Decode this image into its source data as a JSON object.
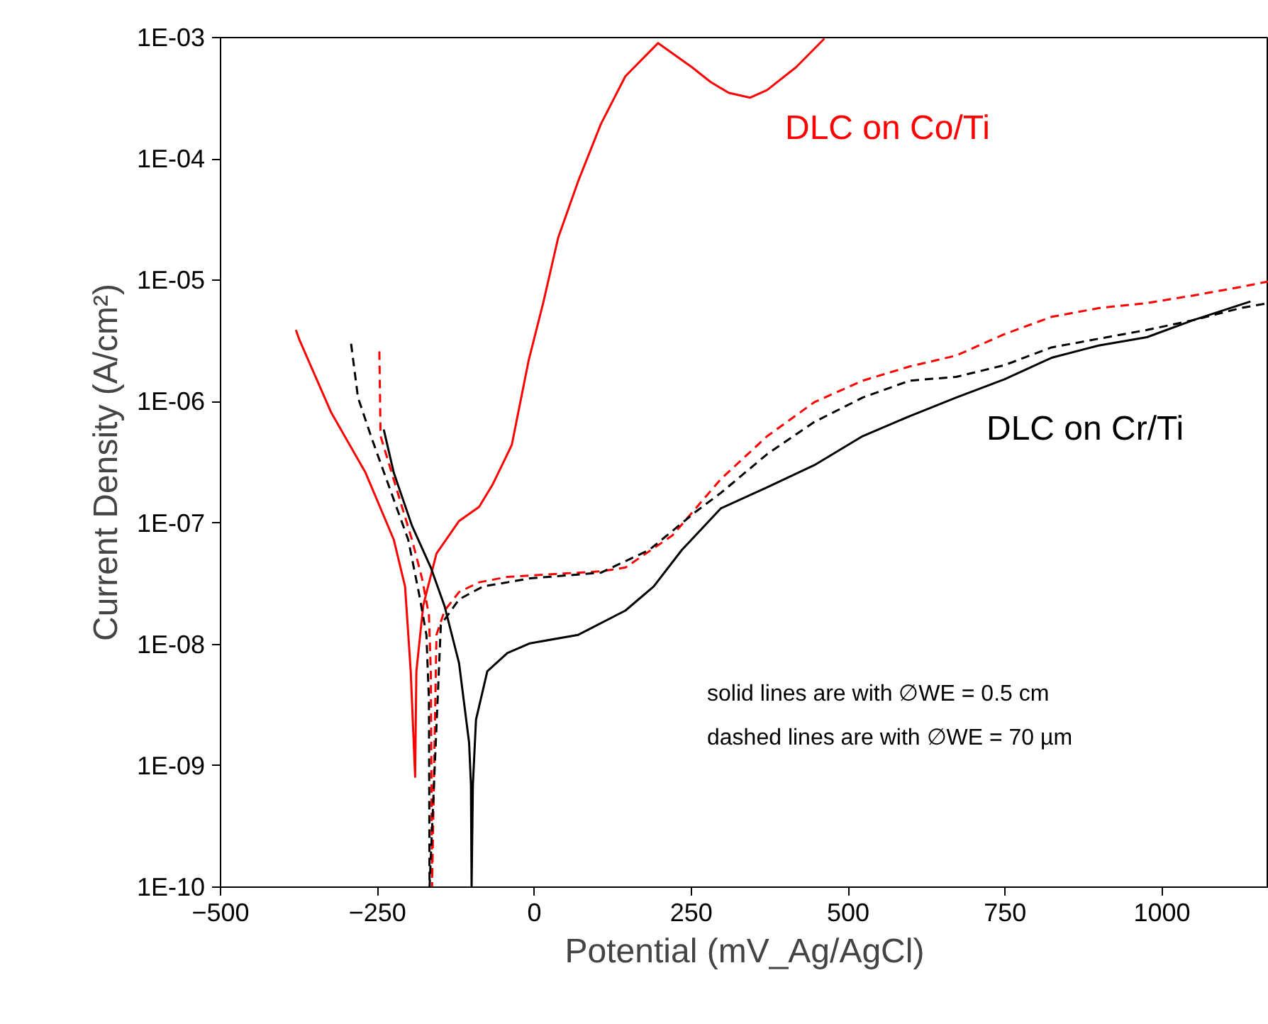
{
  "chart_data": {
    "type": "line",
    "xlabel": "Potential (mV_Ag/AgCl)",
    "ylabel": "Current Density (A/cm²)",
    "log": "y",
    "xlim": [
      -500,
      1170
    ],
    "xticks": [
      -500,
      -250,
      0,
      250,
      500,
      750,
      1000
    ],
    "ylim": [
      1e-10,
      0.001
    ],
    "yticks": [
      {
        "value": 1e-10,
        "label": "1E-10"
      },
      {
        "value": 1e-09,
        "label": "1E-09"
      },
      {
        "value": 1e-08,
        "label": "1E-08"
      },
      {
        "value": 1e-07,
        "label": "1E-07"
      },
      {
        "value": 1e-06,
        "label": "1E-06"
      },
      {
        "value": 1e-05,
        "label": "1E-05"
      },
      {
        "value": 0.0001,
        "label": "1E-04"
      },
      {
        "value": 0.001,
        "label": "1E-03"
      }
    ],
    "grid": false,
    "series": [
      {
        "name": "DLC on Co/Ti",
        "color": "#ff0000",
        "line_style": "solid",
        "x": [
          -380,
          -374,
          -324,
          -269,
          -224,
          -206,
          -197,
          -190,
          -188,
          -177,
          -156,
          -120,
          -88,
          -66,
          -43,
          -36,
          -9,
          14,
          38,
          70,
          106,
          145,
          197,
          251,
          281,
          310,
          344,
          371,
          417,
          462
        ],
        "values": [
          3.9e-06,
          3.2e-06,
          8.2e-07,
          2.6e-07,
          7.3e-08,
          3e-08,
          6e-09,
          8.1e-10,
          6e-09,
          2.1e-08,
          5.6e-08,
          1.04e-07,
          1.36e-07,
          2.1e-07,
          3.7e-07,
          4.4e-07,
          2.2e-06,
          6.5e-06,
          2.25e-05,
          6.6e-05,
          0.000194,
          0.00048,
          0.0009,
          0.00057,
          0.00043,
          0.00035,
          0.00032,
          0.00037,
          0.00057,
          0.00098
        ]
      },
      {
        "color": "#ff0000",
        "line_style": "dashed",
        "x": [
          -247,
          -245,
          -222,
          -195,
          -179,
          -168,
          -165,
          -163,
          -156,
          -143,
          -120,
          -88,
          -43,
          32,
          106,
          145,
          220,
          297,
          371,
          446,
          523,
          598,
          672,
          749,
          824,
          899,
          976,
          1050,
          1125,
          1170
        ],
        "values": [
          2.6e-06,
          5.2e-07,
          2.1e-07,
          7.3e-08,
          3.5e-08,
          1.75e-08,
          6e-09,
          1e-10,
          1.2e-08,
          1.9e-08,
          2.7e-08,
          3.25e-08,
          3.6e-08,
          3.8e-08,
          4e-08,
          4.3e-08,
          7.9e-08,
          2.3e-07,
          5.2e-07,
          9.9e-07,
          1.49e-06,
          1.95e-06,
          2.4e-06,
          3.6e-06,
          5e-06,
          5.9e-06,
          6.5e-06,
          7.5e-06,
          8.8e-06,
          9.8e-06
        ]
      },
      {
        "color": "#000000",
        "line_style": "dashed",
        "x": [
          -292,
          -281,
          -258,
          -233,
          -201,
          -183,
          -172,
          -168,
          -167,
          -149,
          -120,
          -82,
          -7,
          106,
          183,
          258,
          297,
          371,
          446,
          523,
          598,
          672,
          749,
          824,
          899,
          976,
          1050,
          1125,
          1170
        ],
        "values": [
          3e-06,
          1.08e-06,
          4.8e-07,
          2.1e-07,
          7.3e-08,
          2.5e-08,
          1.2e-08,
          3.5e-09,
          1e-10,
          1.45e-08,
          2.35e-08,
          3e-08,
          3.5e-08,
          3.9e-08,
          6e-08,
          1.25e-07,
          1.77e-07,
          3.7e-07,
          6.8e-07,
          1.08e-06,
          1.49e-06,
          1.6e-06,
          2e-06,
          2.8e-06,
          3.3e-06,
          3.9e-06,
          4.7e-06,
          5.9e-06,
          6.5e-06
        ]
      },
      {
        "name": "DLC on Cr/Ti",
        "color": "#000000",
        "line_style": "solid",
        "x": [
          -240,
          -224,
          -195,
          -165,
          -143,
          -120,
          -104,
          -101,
          -100,
          -98,
          -93,
          -75,
          -43,
          -7,
          70,
          145,
          190,
          235,
          297,
          371,
          446,
          523,
          598,
          672,
          749,
          824,
          899,
          976,
          1050,
          1141
        ],
        "values": [
          5.9e-07,
          2.6e-07,
          9.5e-08,
          4.3e-08,
          2.06e-08,
          7e-09,
          1.55e-09,
          6.9e-10,
          1e-10,
          6.9e-10,
          2.4e-09,
          6e-09,
          8.5e-09,
          1.02e-08,
          1.2e-08,
          1.9e-08,
          3e-08,
          6e-08,
          1.32e-07,
          1.97e-07,
          3e-07,
          5.2e-07,
          7.6e-07,
          1.08e-06,
          1.53e-06,
          2.3e-06,
          2.9e-06,
          3.4e-06,
          4.7e-06,
          6.7e-06
        ]
      }
    ],
    "annotations": [
      "solid lines are with ∅WE = 0.5 cm",
      "dashed lines are with ∅WE = 70 µm"
    ]
  }
}
